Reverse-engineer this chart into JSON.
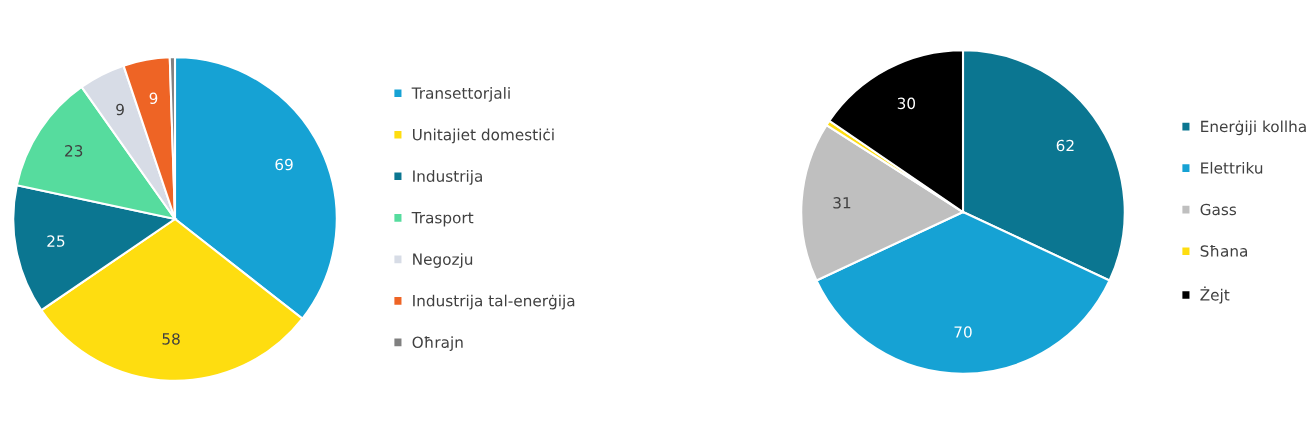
{
  "chart_data": [
    {
      "type": "pie",
      "categories": [
        "Transettorjali",
        "Unitajiet domestiċi",
        "Industrija",
        "Trasport",
        "Negozju",
        "Industrija tal-enerġija",
        "Oħrajn"
      ],
      "values": [
        69,
        58,
        25,
        23,
        9,
        9,
        1
      ],
      "value_labels": [
        "69",
        "58",
        "25",
        "23",
        "9",
        "9",
        null
      ],
      "colors": [
        "#16a2d4",
        "#fedd10",
        "#0b7691",
        "#56dc9e",
        "#d7dce6",
        "#ee6425",
        "#808080"
      ],
      "legend": "right"
    },
    {
      "type": "pie",
      "categories": [
        "Enerġiji kollha",
        "Elettriku",
        "Gass",
        "Sħana",
        "Żejt"
      ],
      "values": [
        62,
        70,
        31,
        1,
        30
      ],
      "value_labels": [
        "62",
        "70",
        "31",
        null,
        "30"
      ],
      "colors": [
        "#0b7691",
        "#16a2d4",
        "#bfbfbf",
        "#fedd10",
        "#000000"
      ],
      "legend": "right"
    }
  ]
}
